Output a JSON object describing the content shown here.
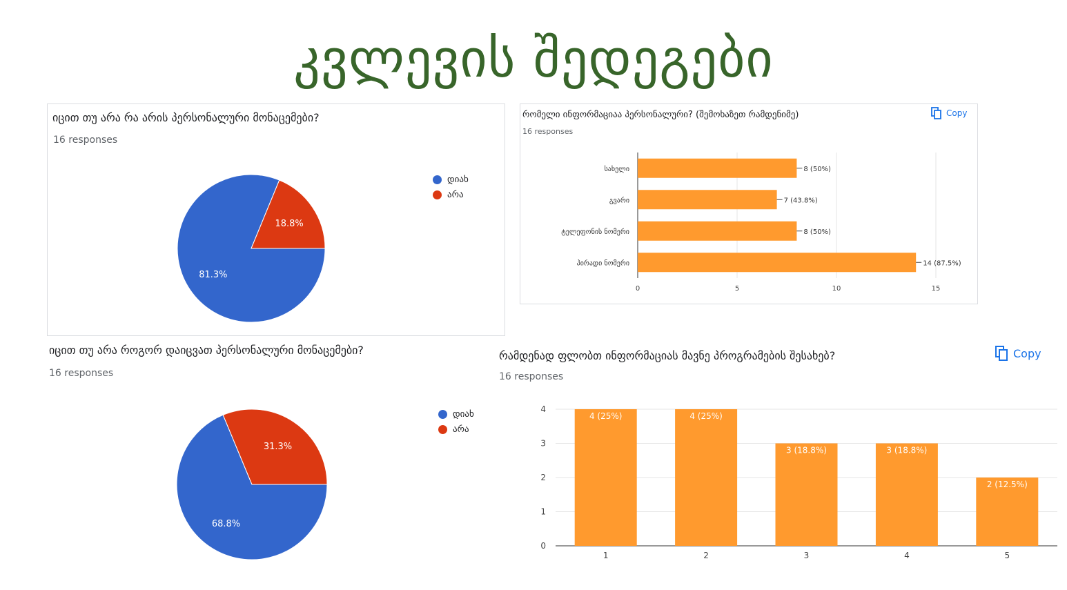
{
  "page_title": "კვლევის შედეგები",
  "colors": {
    "title": "#38652a",
    "blue": "#3366cc",
    "red": "#dc3912",
    "orange": "#ff9a2e",
    "accent": "#1a73e8"
  },
  "copy_label": "Copy",
  "copy_icon": "copy-icon",
  "chart_data": [
    {
      "type": "pie",
      "title": "იცით თუ არა რა არის პერსონალური მონაცემები?",
      "subtitle": "16 responses",
      "legend": [
        "დიახ",
        "არა"
      ],
      "values": [
        81.3,
        18.8
      ],
      "labels": [
        "81.3%",
        "18.8%"
      ],
      "legend_position": "right"
    },
    {
      "type": "bar",
      "orientation": "horizontal",
      "title": "რომელი ინფორმაციაა პერსონალური? (შემოხაზეთ რამდენიმე)",
      "subtitle": "16 responses",
      "categories": [
        "სახელი",
        "გვარი",
        "ტელეფონის ნომერი",
        "პირადი ნომერი"
      ],
      "values": [
        8,
        7,
        8,
        14
      ],
      "data_labels": [
        "8 (50%)",
        "7 (43.8%)",
        "8 (50%)",
        "14 (87.5%)"
      ],
      "xticks": [
        "0",
        "5",
        "10",
        "15"
      ],
      "xlim": [
        0,
        15
      ],
      "grid": true
    },
    {
      "type": "pie",
      "title": "იცით თუ არა როგორ დაიცვათ პერსონალური მონაცემები?",
      "subtitle": "16 responses",
      "legend": [
        "დიახ",
        "არა"
      ],
      "values": [
        68.8,
        31.3
      ],
      "labels": [
        "68.8%",
        "31.3%"
      ],
      "legend_position": "right"
    },
    {
      "type": "bar",
      "orientation": "vertical",
      "title": "რამდენად ფლობთ ინფორმაციას მავნე პროგრამების შესახებ?",
      "subtitle": "16 responses",
      "categories": [
        "1",
        "2",
        "3",
        "4",
        "5"
      ],
      "values": [
        4,
        4,
        3,
        3,
        2
      ],
      "data_labels": [
        "4 (25%)",
        "4 (25%)",
        "3 (18.8%)",
        "3 (18.8%)",
        "2 (12.5%)"
      ],
      "yticks": [
        "0",
        "1",
        "2",
        "3",
        "4"
      ],
      "ylim": [
        0,
        4
      ],
      "grid": true
    }
  ]
}
